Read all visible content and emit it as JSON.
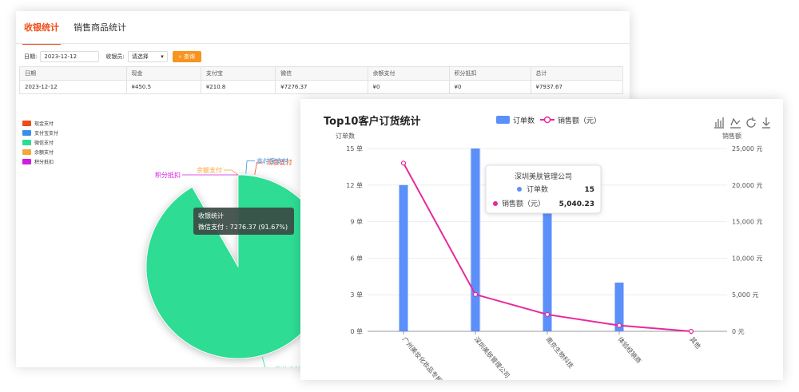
{
  "tabs": [
    {
      "label": "收银统计",
      "active": true
    },
    {
      "label": "销售商品统计",
      "active": false
    }
  ],
  "filters": {
    "date_label": "日期:",
    "date_value": "2023-12-12",
    "cashier_label": "收银员:",
    "cashier_value": "请选择",
    "query_label": "查询"
  },
  "table": {
    "headers": [
      "日期",
      "现金",
      "支付宝",
      "微信",
      "余额支付",
      "积分抵扣",
      "总计"
    ],
    "rows": [
      [
        "2023-12-12",
        "¥450.5",
        "¥210.8",
        "¥7276.37",
        "¥0",
        "¥0",
        "¥7937.67"
      ]
    ]
  },
  "pie_legend": [
    {
      "label": "现金支付",
      "color": "#f04b16"
    },
    {
      "label": "支付宝支付",
      "color": "#3a8ee6"
    },
    {
      "label": "微信支付",
      "color": "#2ddc94"
    },
    {
      "label": "余额支付",
      "color": "#f7a43a"
    },
    {
      "label": "积分抵扣",
      "color": "#d21be0"
    }
  ],
  "pie_tooltip": {
    "title": "收银统计",
    "text": "微信支付 : 7276.37 (91.67%)"
  },
  "bar_tooltip": {
    "title": "深圳美肤管理公司",
    "rows": [
      {
        "label": "订单数",
        "value": "15",
        "color": "#5b8ff9"
      },
      {
        "label": "销售额（元）",
        "value": "5,040.23",
        "color": "#e8289e"
      }
    ]
  },
  "chart_data": [
    {
      "type": "pie",
      "title": "",
      "slices": [
        {
          "name": "现金支付",
          "value": 450.5,
          "color": "#f04b16"
        },
        {
          "name": "支付宝支付",
          "value": 210.8,
          "color": "#3a8ee6"
        },
        {
          "name": "微信支付",
          "value": 7276.37,
          "color": "#2ddc94"
        },
        {
          "name": "余额支付",
          "value": 0,
          "color": "#f7a43a"
        },
        {
          "name": "积分抵扣",
          "value": 0,
          "color": "#d21be0"
        }
      ],
      "legend_position": "top-left"
    },
    {
      "type": "bar",
      "title": "Top10客户订货统计",
      "categories": [
        "广州美妆化妆品专柜",
        "深圳美肤管理公司",
        "南京生物科技",
        "体验经销商",
        "其他"
      ],
      "series": [
        {
          "name": "订单数",
          "type": "bar",
          "axis": "left",
          "values": [
            12,
            15,
            10,
            4,
            0
          ],
          "color": "#5b8ff9"
        },
        {
          "name": "销售额（元）",
          "type": "line",
          "axis": "right",
          "values": [
            23000,
            5040.23,
            2300,
            800,
            0
          ],
          "color": "#e8289e"
        }
      ],
      "y_left": {
        "label": "订单数",
        "min": 0,
        "max": 15,
        "ticks": [
          "0 单",
          "3 单",
          "6 单",
          "9 单",
          "12 单",
          "15 单"
        ]
      },
      "y_right": {
        "label": "销售额",
        "min": 0,
        "max": 25000,
        "ticks": [
          "0 元",
          "5,000 元",
          "10,000 元",
          "15,000 元",
          "20,000 元",
          "25,000 元"
        ]
      },
      "legend_position": "top-center",
      "grid": true
    }
  ]
}
